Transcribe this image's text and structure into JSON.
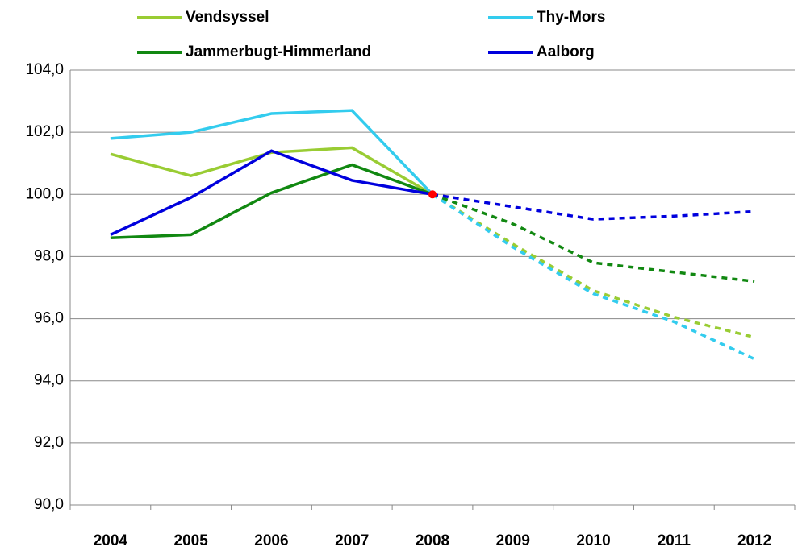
{
  "chart_data": {
    "type": "line",
    "categories": [
      "2004",
      "2005",
      "2006",
      "2007",
      "2008",
      "2009",
      "2010",
      "2011",
      "2012"
    ],
    "series": [
      {
        "name": "Vendsyssel",
        "color": "#99cc33",
        "values": [
          101.3,
          100.6,
          101.35,
          101.5,
          100,
          98.4,
          96.9,
          96.05,
          95.4
        ]
      },
      {
        "name": "Thy-Mors",
        "color": "#33ccee",
        "values": [
          101.8,
          102.0,
          102.6,
          102.7,
          100,
          98.3,
          96.8,
          95.9,
          94.7
        ]
      },
      {
        "name": "Jammerbugt-Himmerland",
        "color": "#118811",
        "values": [
          98.6,
          98.7,
          100.05,
          100.95,
          100,
          99.05,
          97.8,
          97.5,
          97.2
        ]
      },
      {
        "name": "Aalborg",
        "color": "#0000dd",
        "values": [
          98.7,
          99.9,
          101.4,
          100.45,
          100,
          99.6,
          99.2,
          99.3,
          99.45
        ]
      }
    ],
    "dashed_from": "2008",
    "marker": {
      "x": "2008",
      "value": 100,
      "color": "#ff0000"
    },
    "ylim": [
      90,
      104
    ],
    "yticks": [
      {
        "value": 90,
        "label": "90,0"
      },
      {
        "value": 92,
        "label": "92,0"
      },
      {
        "value": 94,
        "label": "94,0"
      },
      {
        "value": 96,
        "label": "96,0"
      },
      {
        "value": 98,
        "label": "98,0"
      },
      {
        "value": 100,
        "label": "100,0"
      },
      {
        "value": 102,
        "label": "102,0"
      },
      {
        "value": 104,
        "label": "104,0"
      }
    ],
    "grid": true
  }
}
